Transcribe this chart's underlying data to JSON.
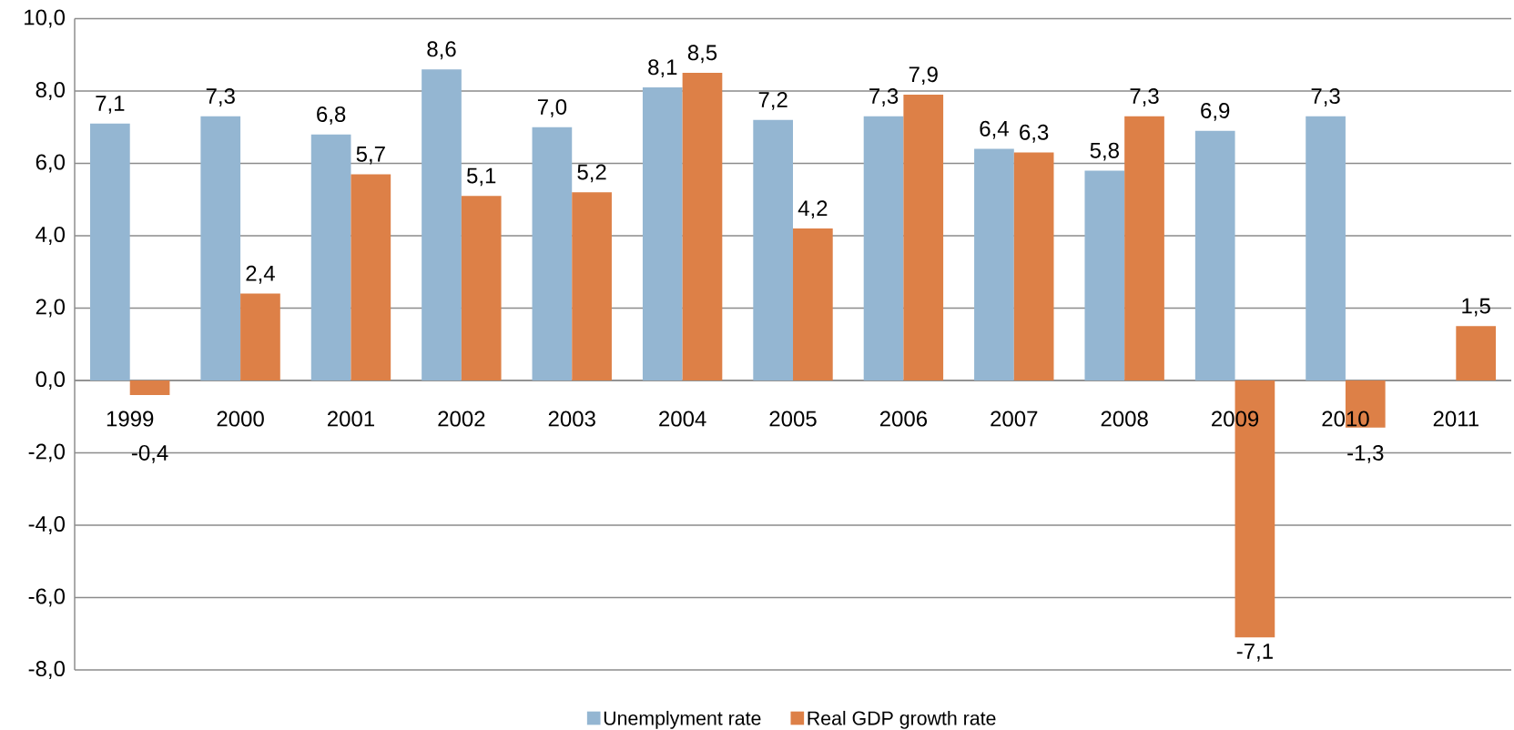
{
  "chart_data": {
    "type": "bar",
    "categories": [
      "1999",
      "2000",
      "2001",
      "2002",
      "2003",
      "2004",
      "2005",
      "2006",
      "2007",
      "2008",
      "2009",
      "2010",
      "2011"
    ],
    "series": [
      {
        "name": "Unemplyment rate",
        "color": "#94b6d2",
        "values": [
          7.1,
          7.3,
          6.8,
          8.6,
          7.0,
          8.1,
          7.2,
          7.3,
          6.4,
          5.8,
          6.9,
          7.3,
          null
        ],
        "value_labels": [
          "7,1",
          "7,3",
          "6,8",
          "8,6",
          "7,0",
          "8,1",
          "7,2",
          "7,3",
          "6,4",
          "5,8",
          "6,9",
          "7,3",
          null
        ]
      },
      {
        "name": "Real GDP growth rate",
        "color": "#dd8047",
        "values": [
          -0.4,
          2.4,
          5.7,
          5.1,
          5.2,
          8.5,
          4.2,
          7.9,
          6.3,
          7.3,
          -7.1,
          -1.3,
          1.5
        ],
        "value_labels": [
          "-0,4",
          "2,4",
          "5,7",
          "5,1",
          "5,2",
          "8,5",
          "4,2",
          "7,9",
          "6,3",
          "7,3",
          "-7,1",
          "-1,3",
          "1,5"
        ]
      }
    ],
    "ylim": [
      -8,
      10
    ],
    "yticks": [
      {
        "value": -8,
        "label": "-8,0"
      },
      {
        "value": -6,
        "label": "-6,0"
      },
      {
        "value": -4,
        "label": "-4,0"
      },
      {
        "value": -2,
        "label": "-2,0"
      },
      {
        "value": 0,
        "label": "0,0"
      },
      {
        "value": 2,
        "label": "2,0"
      },
      {
        "value": 4,
        "label": "4,0"
      },
      {
        "value": 6,
        "label": "6,0"
      },
      {
        "value": 8,
        "label": "8,0"
      },
      {
        "value": 10,
        "label": "10,0"
      }
    ],
    "grid": "y",
    "legend": "bottom"
  }
}
